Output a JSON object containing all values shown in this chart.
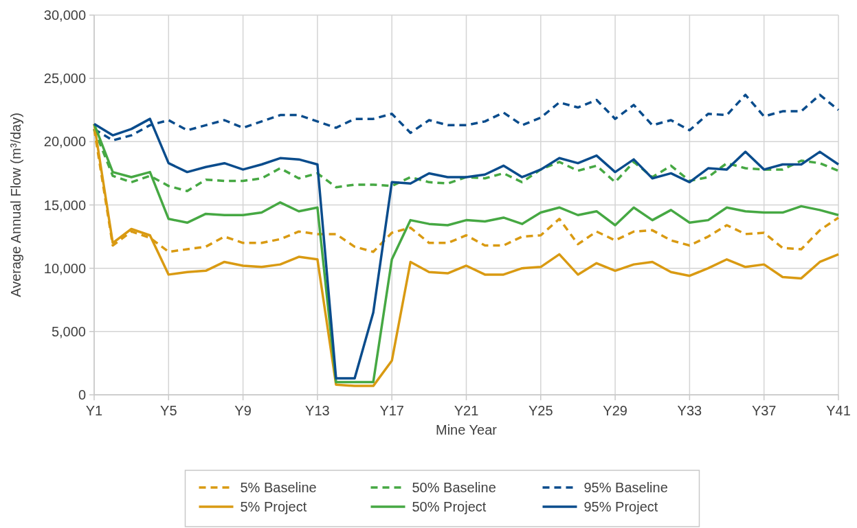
{
  "chart_data": {
    "type": "line",
    "xlabel": "Mine Year",
    "ylabel": "Average Annual Flow (m³/day)",
    "categories": [
      "Y1",
      null,
      null,
      null,
      "Y5",
      null,
      null,
      null,
      "Y9",
      null,
      null,
      null,
      "Y13",
      null,
      null,
      null,
      "Y17",
      null,
      null,
      null,
      "Y21",
      null,
      null,
      null,
      "Y25",
      null,
      null,
      null,
      "Y29",
      null,
      null,
      null,
      "Y33",
      null,
      null,
      null,
      "Y37",
      null,
      null,
      null,
      "Y41"
    ],
    "ylim": [
      0,
      30000
    ],
    "yticks": [
      0,
      {
        "value": 5000,
        "label": "5,000"
      },
      {
        "value": 10000,
        "label": "10,000"
      },
      {
        "value": 15000,
        "label": "15,000"
      },
      {
        "value": 20000,
        "label": "20,000"
      },
      {
        "value": 25000,
        "label": "25,000"
      },
      {
        "value": 30000,
        "label": "30,000"
      }
    ],
    "grid": true,
    "legend": "bottom",
    "series": [
      {
        "name": "5% Baseline",
        "color": "#d99a12",
        "line_style": "dashed",
        "values": [
          21000,
          11800,
          12900,
          12400,
          11300,
          11500,
          11700,
          12500,
          12000,
          12000,
          12300,
          12900,
          12700,
          12700,
          11700,
          11300,
          12800,
          13200,
          12000,
          12000,
          12600,
          11800,
          11800,
          12500,
          12600,
          13900,
          11900,
          12900,
          12200,
          12900,
          13000,
          12200,
          11800,
          12500,
          13400,
          12700,
          12800,
          11600,
          11500,
          13000,
          14000
        ]
      },
      {
        "name": "50% Baseline",
        "color": "#46a843",
        "line_style": "dashed",
        "values": [
          21000,
          17300,
          16800,
          17300,
          16500,
          16100,
          17000,
          16900,
          16900,
          17100,
          17900,
          17100,
          17500,
          16400,
          16600,
          16600,
          16500,
          17200,
          16800,
          16700,
          17200,
          17100,
          17500,
          16800,
          17800,
          18400,
          17700,
          18100,
          16800,
          18400,
          17200,
          18100,
          16900,
          17200,
          18300,
          17900,
          17800,
          17800,
          18500,
          18300,
          17700
        ]
      },
      {
        "name": "95% Baseline",
        "color": "#0a4c8c",
        "line_style": "dashed",
        "values": [
          21000,
          20100,
          20500,
          21300,
          21700,
          20900,
          21300,
          21700,
          21100,
          21600,
          22100,
          22100,
          21600,
          21100,
          21800,
          21800,
          22200,
          20700,
          21700,
          21300,
          21300,
          21600,
          22300,
          21300,
          21900,
          23100,
          22700,
          23300,
          21800,
          22900,
          21300,
          21700,
          20900,
          22200,
          22100,
          23700,
          22000,
          22400,
          22400,
          23700,
          22500
        ]
      },
      {
        "name": "5% Project",
        "color": "#d99a12",
        "line_style": "solid",
        "values": [
          21400,
          12000,
          13100,
          12600,
          9500,
          9700,
          9800,
          10500,
          10200,
          10100,
          10300,
          10900,
          10700,
          800,
          700,
          700,
          2700,
          10500,
          9700,
          9600,
          10200,
          9500,
          9500,
          10000,
          10100,
          11100,
          9500,
          10400,
          9800,
          10300,
          10500,
          9700,
          9400,
          10000,
          10700,
          10100,
          10300,
          9300,
          9200,
          10500,
          11100
        ]
      },
      {
        "name": "50% Project",
        "color": "#46a843",
        "line_style": "solid",
        "values": [
          21400,
          17600,
          17200,
          17600,
          13900,
          13600,
          14300,
          14200,
          14200,
          14400,
          15200,
          14500,
          14800,
          1000,
          1000,
          1000,
          10700,
          13800,
          13500,
          13400,
          13800,
          13700,
          14000,
          13500,
          14400,
          14800,
          14200,
          14500,
          13400,
          14800,
          13800,
          14600,
          13600,
          13800,
          14800,
          14500,
          14400,
          14400,
          14900,
          14600,
          14200
        ]
      },
      {
        "name": "95% Project",
        "color": "#0a4c8c",
        "line_style": "solid",
        "values": [
          21400,
          20500,
          21000,
          21800,
          18300,
          17600,
          18000,
          18300,
          17800,
          18200,
          18700,
          18600,
          18200,
          1300,
          1300,
          6500,
          16800,
          16700,
          17500,
          17200,
          17200,
          17400,
          18100,
          17200,
          17800,
          18700,
          18300,
          18900,
          17600,
          18600,
          17100,
          17500,
          16800,
          17900,
          17800,
          19200,
          17800,
          18200,
          18200,
          19200,
          18200
        ]
      }
    ]
  }
}
